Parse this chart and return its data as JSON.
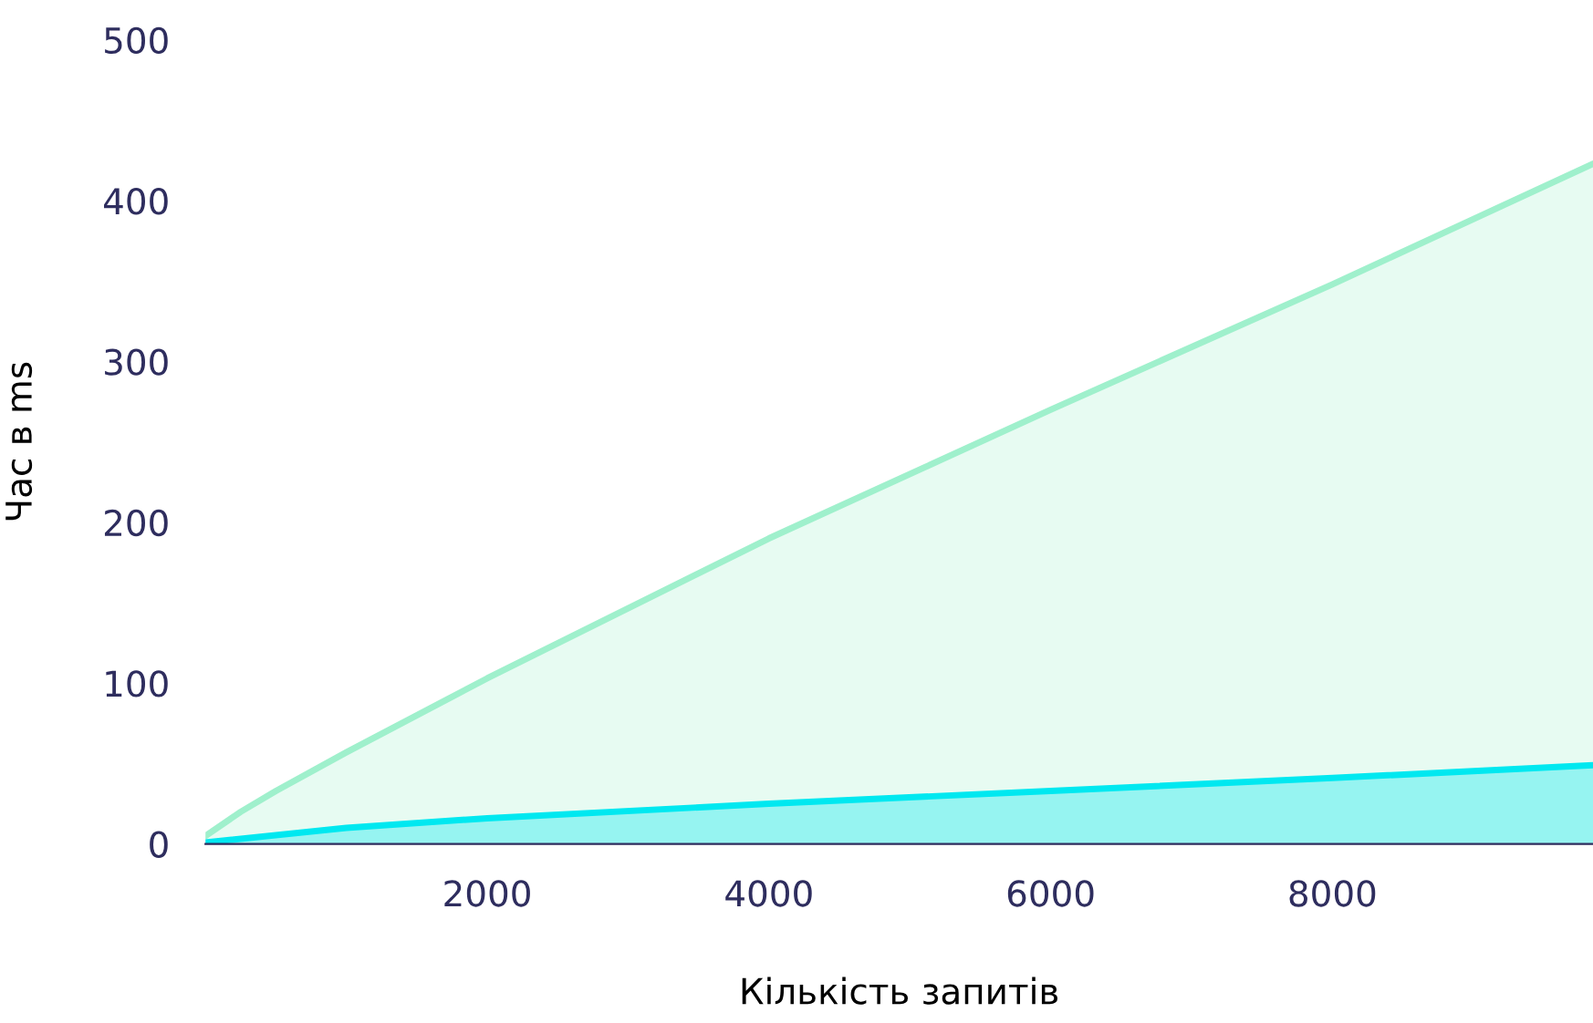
{
  "chart_data": {
    "type": "area",
    "xlabel": "Кількість запитів",
    "ylabel": "Час в ms",
    "xlim": [
      0,
      9850
    ],
    "xticks": [
      2000,
      4000,
      6000,
      8000
    ],
    "ylim": [
      0,
      500
    ],
    "yticks": [
      0,
      100,
      200,
      300,
      400,
      500
    ],
    "grid": false,
    "legend": false,
    "series": [
      {
        "color": "#9ff0cc",
        "x": [
          0,
          250,
          500,
          1000,
          2000,
          4000,
          6000,
          8000,
          9850
        ],
        "values": [
          5,
          20,
          33,
          57,
          103,
          190,
          270,
          348,
          423
        ]
      },
      {
        "color": "#00e8f0",
        "x": [
          0,
          1000,
          2000,
          4000,
          6000,
          8000,
          9850
        ],
        "values": [
          1,
          10,
          16,
          25,
          33,
          41,
          49
        ]
      }
    ]
  }
}
